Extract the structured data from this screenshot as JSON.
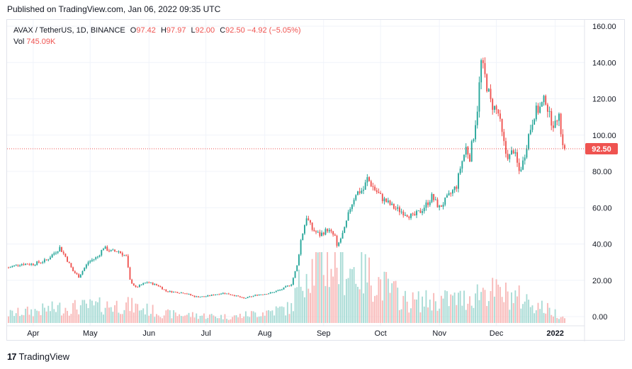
{
  "header": {
    "published": "Published on TradingView.com, Jan 06, 2022 09:35 UTC"
  },
  "legend": {
    "symbol": "AVAX / TetherUS, 1D, BINANCE",
    "o_label": "O",
    "o_value": "97.42",
    "h_label": "H",
    "h_value": "97.97",
    "l_label": "L",
    "l_value": "92.00",
    "c_label": "C",
    "c_value": "92.50",
    "change": "−4.92 (−5.05%)",
    "vol_label": "Vol",
    "vol_value": "745.09K"
  },
  "footer": {
    "logo": "17",
    "brand": "TradingView"
  },
  "colors": {
    "up": "#26a69a",
    "down": "#ef5350",
    "vol_up": "#a8dbd5",
    "vol_down": "#f8b9b8",
    "grid": "#f0f3fa",
    "axis_text": "#131722",
    "price_line": "#ef5350"
  },
  "chart_data": {
    "type": "candlestick",
    "ylim": [
      0,
      160
    ],
    "yticks": [
      "160.00",
      "140.00",
      "120.00",
      "100.00",
      "80.00",
      "60.00",
      "40.00",
      "20.00",
      "0.00"
    ],
    "yticks_values": [
      160,
      140,
      120,
      100,
      80,
      60,
      40,
      20,
      0
    ],
    "xticks": [
      "Apr",
      "May",
      "Jun",
      "Jul",
      "Aug",
      "Sep",
      "Oct",
      "Nov",
      "Dec",
      "2022"
    ],
    "xtick_dates": [
      "2021-04-01",
      "2021-05-01",
      "2021-06-01",
      "2021-07-01",
      "2021-08-01",
      "2021-09-01",
      "2021-10-01",
      "2021-11-01",
      "2021-12-01",
      "2022-01-01"
    ],
    "start_date": "2021-03-19",
    "end_date": "2022-01-06",
    "last_price": "92.50",
    "last_value": 92.5,
    "close_path": [
      [
        "2021-03-19",
        27
      ],
      [
        "2021-03-25",
        29
      ],
      [
        "2021-04-01",
        29
      ],
      [
        "2021-04-08",
        31
      ],
      [
        "2021-04-12",
        35
      ],
      [
        "2021-04-15",
        38
      ],
      [
        "2021-04-18",
        33
      ],
      [
        "2021-04-22",
        25
      ],
      [
        "2021-04-25",
        22
      ],
      [
        "2021-04-30",
        30
      ],
      [
        "2021-05-05",
        33
      ],
      [
        "2021-05-08",
        38
      ],
      [
        "2021-05-12",
        36
      ],
      [
        "2021-05-16",
        36
      ],
      [
        "2021-05-20",
        33
      ],
      [
        "2021-05-22",
        20
      ],
      [
        "2021-05-25",
        16
      ],
      [
        "2021-05-31",
        19
      ],
      [
        "2021-06-06",
        17
      ],
      [
        "2021-06-10",
        14
      ],
      [
        "2021-06-20",
        13
      ],
      [
        "2021-06-25",
        11
      ],
      [
        "2021-06-30",
        11
      ],
      [
        "2021-07-05",
        12
      ],
      [
        "2021-07-10",
        13
      ],
      [
        "2021-07-15",
        12
      ],
      [
        "2021-07-21",
        10
      ],
      [
        "2021-07-28",
        12
      ],
      [
        "2021-08-04",
        13
      ],
      [
        "2021-08-10",
        15
      ],
      [
        "2021-08-15",
        18
      ],
      [
        "2021-08-18",
        28
      ],
      [
        "2021-08-20",
        42
      ],
      [
        "2021-08-23",
        55
      ],
      [
        "2021-08-26",
        48
      ],
      [
        "2021-08-30",
        45
      ],
      [
        "2021-09-03",
        48
      ],
      [
        "2021-09-07",
        44
      ],
      [
        "2021-09-08",
        38
      ],
      [
        "2021-09-12",
        48
      ],
      [
        "2021-09-15",
        60
      ],
      [
        "2021-09-18",
        68
      ],
      [
        "2021-09-22",
        70
      ],
      [
        "2021-09-24",
        76
      ],
      [
        "2021-09-28",
        70
      ],
      [
        "2021-10-02",
        65
      ],
      [
        "2021-10-08",
        60
      ],
      [
        "2021-10-14",
        57
      ],
      [
        "2021-10-18",
        55
      ],
      [
        "2021-10-22",
        58
      ],
      [
        "2021-10-26",
        63
      ],
      [
        "2021-10-28",
        66
      ],
      [
        "2021-11-01",
        60
      ],
      [
        "2021-11-05",
        65
      ],
      [
        "2021-11-10",
        72
      ],
      [
        "2021-11-12",
        82
      ],
      [
        "2021-11-15",
        93
      ],
      [
        "2021-11-17",
        88
      ],
      [
        "2021-11-19",
        100
      ],
      [
        "2021-11-21",
        115
      ],
      [
        "2021-11-23",
        140
      ],
      [
        "2021-11-25",
        132
      ],
      [
        "2021-11-28",
        118
      ],
      [
        "2021-12-02",
        112
      ],
      [
        "2021-12-04",
        100
      ],
      [
        "2021-12-06",
        90
      ],
      [
        "2021-12-08",
        88
      ],
      [
        "2021-12-10",
        92
      ],
      [
        "2021-12-13",
        80
      ],
      [
        "2021-12-15",
        85
      ],
      [
        "2021-12-18",
        100
      ],
      [
        "2021-12-21",
        112
      ],
      [
        "2021-12-24",
        115
      ],
      [
        "2021-12-27",
        120
      ],
      [
        "2021-12-29",
        110
      ],
      [
        "2022-01-01",
        105
      ],
      [
        "2022-01-03",
        115
      ],
      [
        "2022-01-04",
        100
      ],
      [
        "2022-01-06",
        92.5
      ]
    ],
    "volume_scale": "relative (0-1)",
    "volume_path": [
      [
        "2021-03-19",
        0.15
      ],
      [
        "2021-04-15",
        0.25
      ],
      [
        "2021-05-20",
        0.3
      ],
      [
        "2021-06-10",
        0.15
      ],
      [
        "2021-07-15",
        0.1
      ],
      [
        "2021-08-15",
        0.25
      ],
      [
        "2021-08-22",
        0.9
      ],
      [
        "2021-09-08",
        1.0
      ],
      [
        "2021-09-24",
        0.8
      ],
      [
        "2021-10-15",
        0.35
      ],
      [
        "2021-11-15",
        0.4
      ],
      [
        "2021-11-24",
        0.55
      ],
      [
        "2021-12-15",
        0.4
      ],
      [
        "2022-01-06",
        0.1
      ]
    ]
  }
}
